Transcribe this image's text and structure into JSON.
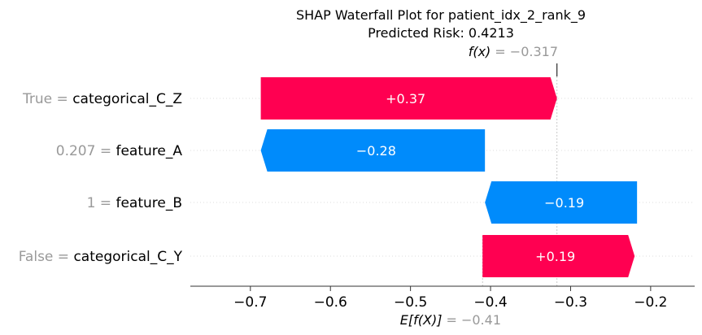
{
  "chart_data": {
    "type": "waterfall",
    "title": "SHAP Waterfall Plot for patient_idx_2_rank_9",
    "subtitle": "Predicted Risk: 0.4213",
    "base_value": -0.41,
    "base_value_label": "= −0.41",
    "fx_value": -0.317,
    "fx_value_label": "= −0.317",
    "xlim": [
      -0.775,
      -0.145
    ],
    "x_ticks": [
      -0.7,
      -0.6,
      -0.5,
      -0.4,
      -0.3,
      -0.2
    ],
    "x_tick_labels": [
      "−0.7",
      "−0.6",
      "−0.5",
      "−0.4",
      "−0.3",
      "−0.2"
    ],
    "colors": {
      "positive": "#ff0051",
      "negative": "#008bfb"
    },
    "features": [
      {
        "value": "True",
        "name": "categorical_C_Z",
        "shap": 0.37,
        "start": -0.687,
        "end": -0.317,
        "label": "+0.37"
      },
      {
        "value": "0.207",
        "name": "feature_A",
        "shap": -0.28,
        "start": -0.407,
        "end": -0.687,
        "label": "−0.28"
      },
      {
        "value": "1",
        "name": "feature_B",
        "shap": -0.19,
        "start": -0.217,
        "end": -0.407,
        "label": "−0.19"
      },
      {
        "value": "False",
        "name": "categorical_C_Y",
        "shap": 0.19,
        "start": -0.41,
        "end": -0.22,
        "label": "+0.19"
      }
    ]
  }
}
